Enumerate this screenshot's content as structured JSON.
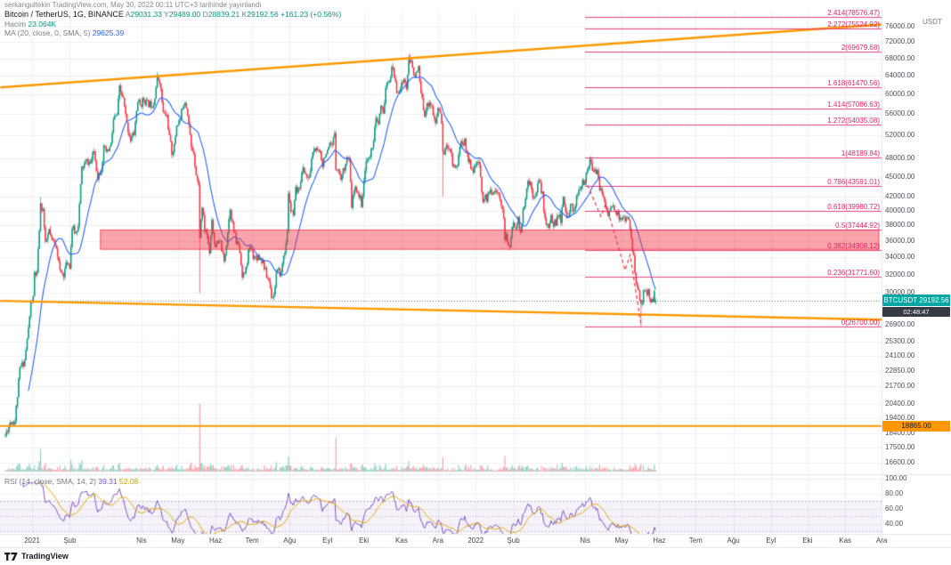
{
  "attribution": "serkangultekin TradingView.com, May 30, 2022 00:11 UTC+3 tarihinde yayınlandı",
  "legend": {
    "title": "Bitcoin / TetherUS, 1G, BINANCE",
    "ohlc": [
      {
        "k": "A",
        "v": "29031.33"
      },
      {
        "k": "Y",
        "v": "29489.00"
      },
      {
        "k": "D",
        "v": "28839.21"
      },
      {
        "k": "K",
        "v": "29192.56"
      }
    ],
    "change": "+161.23 (+0.56%)",
    "volume_label": "Hacim",
    "volume_value": "23.064K",
    "ma_label": "MA (20, close, 0, SMA, 5)",
    "ma_value": "29625.39"
  },
  "rsi_legend": {
    "label": "RSI (14, close, SMA, 14, 2)",
    "value": "39.31",
    "value2": "52.08"
  },
  "price_tag": {
    "symbol": "BTCUSDT",
    "price": "29192.56",
    "countdown": "02:48:47"
  },
  "hline_label": "18865.00",
  "scale_currency": "USDT",
  "logo_text": "TradingView",
  "colors": {
    "up": "#089981",
    "down": "#f23645",
    "ma": "#2962ff",
    "trendline": "#ff9800",
    "fib": "#e91e63",
    "zone_fill": "rgba(242,54,69,0.45)",
    "zone_border": "rgba(242,54,69,0.75)",
    "rsi": "#7e57c2",
    "rsi_ma": "#e7a600",
    "rsi_band": "rgba(126,87,194,0.08)",
    "rsi_band_line": "rgba(126,87,194,0.45)",
    "tag_bg": "#00a6a2",
    "countdown_bg": "#363a45",
    "hline": "#ff9800",
    "grid": "rgba(42,46,57,0.07)",
    "sep": "#e3e6ee",
    "close_line": "rgba(19,23,34,0.6)"
  },
  "chart_data": {
    "type": "candlestick",
    "title": "Bitcoin / TetherUS, 1G, BINANCE",
    "symbol": "BTCUSDT",
    "interval": "1G",
    "scale": "log",
    "last": {
      "open": 29031.33,
      "high": 29489.0,
      "low": 28839.21,
      "close": 29192.56,
      "change": "+161.23 (+0.56%)",
      "volume": "23.064K"
    },
    "ma20_last": 29625.39,
    "rsi_last": 39.31,
    "rsi_ma_last": 52.08,
    "y_axis": {
      "currency": "USDT",
      "labels": [
        76000,
        72000,
        68000,
        64000,
        60000,
        56000,
        52000,
        48000,
        45000,
        42000,
        40000,
        38000,
        36000,
        34000,
        32000,
        30000,
        26900,
        25300,
        24100,
        22850,
        21700,
        20400,
        19400,
        18400,
        17500,
        16600
      ]
    },
    "rsi_axis_labels": [
      100,
      80,
      60,
      40
    ],
    "x_axis": [
      {
        "t": "2021",
        "d": 0
      },
      {
        "t": "Şub",
        "d": 31
      },
      {
        "t": "Nis",
        "d": 90
      },
      {
        "t": "May",
        "d": 120
      },
      {
        "t": "Haz",
        "d": 151
      },
      {
        "t": "Tem",
        "d": 181
      },
      {
        "t": "Ağu",
        "d": 212
      },
      {
        "t": "Eyl",
        "d": 243
      },
      {
        "t": "Eki",
        "d": 273
      },
      {
        "t": "Kas",
        "d": 304
      },
      {
        "t": "Ara",
        "d": 334
      },
      {
        "t": "2022",
        "d": 365
      },
      {
        "t": "Şub",
        "d": 396
      },
      {
        "t": "Nis",
        "d": 455
      },
      {
        "t": "May",
        "d": 485
      },
      {
        "t": "Haz",
        "d": 516
      },
      {
        "t": "Tem",
        "d": 546
      },
      {
        "t": "Ağu",
        "d": 577
      },
      {
        "t": "Eyl",
        "d": 608
      },
      {
        "t": "Eki",
        "d": 638
      },
      {
        "t": "Kas",
        "d": 669
      },
      {
        "t": "Ara",
        "d": 699
      }
    ],
    "anchors": [
      [
        -22,
        18250
      ],
      [
        -18,
        19150
      ],
      [
        -14,
        19200
      ],
      [
        -10,
        23000
      ],
      [
        -6,
        23750
      ],
      [
        -3,
        26450
      ],
      [
        -1,
        28950
      ],
      [
        1,
        29400
      ],
      [
        2,
        32150
      ],
      [
        4,
        31950
      ],
      [
        7,
        40600
      ],
      [
        9,
        40150
      ],
      [
        11,
        35450
      ],
      [
        14,
        37300
      ],
      [
        16,
        36000
      ],
      [
        18,
        35850
      ],
      [
        20,
        35500
      ],
      [
        23,
        32250
      ],
      [
        26,
        32100
      ],
      [
        29,
        33450
      ],
      [
        31,
        33100
      ],
      [
        33,
        37700
      ],
      [
        36,
        36950
      ],
      [
        38,
        38300
      ],
      [
        41,
        46350
      ],
      [
        45,
        47500
      ],
      [
        48,
        47150
      ],
      [
        51,
        49200
      ],
      [
        54,
        45100
      ],
      [
        57,
        46300
      ],
      [
        59,
        49600
      ],
      [
        62,
        48900
      ],
      [
        65,
        50350
      ],
      [
        67,
        54900
      ],
      [
        70,
        55850
      ],
      [
        72,
        61200
      ],
      [
        75,
        59000
      ],
      [
        78,
        54100
      ],
      [
        81,
        51300
      ],
      [
        84,
        52400
      ],
      [
        87,
        58800
      ],
      [
        89,
        57750
      ],
      [
        92,
        59000
      ],
      [
        95,
        58100
      ],
      [
        98,
        58000
      ],
      [
        100,
        58200
      ],
      [
        103,
        63500
      ],
      [
        105,
        63100
      ],
      [
        108,
        56200
      ],
      [
        111,
        55650
      ],
      [
        113,
        51700
      ],
      [
        115,
        49000
      ],
      [
        117,
        50000
      ],
      [
        119,
        54000
      ],
      [
        122,
        55000
      ],
      [
        124,
        57750
      ],
      [
        126,
        58800
      ],
      [
        128,
        56400
      ],
      [
        131,
        49700
      ],
      [
        133,
        49100
      ],
      [
        135,
        45600
      ],
      [
        137,
        43550
      ],
      [
        138,
        36700
      ],
      [
        140,
        40600
      ],
      [
        142,
        37300
      ],
      [
        143,
        37500
      ],
      [
        146,
        34700
      ],
      [
        148,
        38900
      ],
      [
        150,
        35700
      ],
      [
        152,
        35500
      ],
      [
        155,
        35800
      ],
      [
        158,
        33400
      ],
      [
        160,
        35800
      ],
      [
        163,
        40500
      ],
      [
        165,
        38100
      ],
      [
        168,
        35800
      ],
      [
        170,
        35600
      ],
      [
        172,
        33500
      ],
      [
        173,
        31600
      ],
      [
        176,
        32550
      ],
      [
        178,
        34650
      ],
      [
        180,
        35050
      ],
      [
        183,
        33900
      ],
      [
        186,
        34200
      ],
      [
        188,
        33850
      ],
      [
        190,
        33500
      ],
      [
        193,
        31800
      ],
      [
        195,
        31400
      ],
      [
        197,
        29800
      ],
      [
        199,
        29800
      ],
      [
        201,
        32150
      ],
      [
        203,
        32300
      ],
      [
        205,
        32100
      ],
      [
        207,
        34300
      ],
      [
        209,
        35400
      ],
      [
        210,
        37300
      ],
      [
        211,
        42200
      ],
      [
        212,
        41500
      ],
      [
        213,
        39900
      ],
      [
        215,
        39150
      ],
      [
        217,
        42850
      ],
      [
        219,
        42800
      ],
      [
        221,
        44600
      ],
      [
        223,
        46250
      ],
      [
        225,
        45600
      ],
      [
        227,
        44400
      ],
      [
        229,
        46000
      ],
      [
        231,
        49300
      ],
      [
        233,
        49500
      ],
      [
        235,
        48900
      ],
      [
        237,
        49250
      ],
      [
        239,
        47100
      ],
      [
        241,
        48800
      ],
      [
        243,
        48800
      ],
      [
        245,
        50000
      ],
      [
        247,
        49900
      ],
      [
        249,
        52650
      ],
      [
        250,
        46800
      ],
      [
        252,
        46050
      ],
      [
        254,
        44950
      ],
      [
        255,
        45200
      ],
      [
        257,
        46700
      ],
      [
        259,
        48150
      ],
      [
        261,
        47250
      ],
      [
        263,
        40700
      ],
      [
        265,
        42800
      ],
      [
        267,
        43200
      ],
      [
        269,
        42200
      ],
      [
        271,
        41050
      ],
      [
        273,
        43800
      ],
      [
        275,
        48150
      ],
      [
        277,
        47650
      ],
      [
        279,
        49250
      ],
      [
        281,
        51500
      ],
      [
        283,
        54700
      ],
      [
        285,
        54000
      ],
      [
        287,
        57400
      ],
      [
        289,
        56000
      ],
      [
        291,
        61700
      ],
      [
        293,
        62000
      ],
      [
        295,
        64300
      ],
      [
        297,
        66000
      ],
      [
        299,
        62200
      ],
      [
        300,
        60700
      ],
      [
        302,
        61300
      ],
      [
        304,
        61850
      ],
      [
        306,
        63300
      ],
      [
        308,
        61400
      ],
      [
        310,
        67550
      ],
      [
        312,
        66950
      ],
      [
        314,
        64900
      ],
      [
        316,
        64150
      ],
      [
        318,
        65500
      ],
      [
        320,
        60100
      ],
      [
        321,
        58600
      ],
      [
        323,
        56300
      ],
      [
        325,
        57550
      ],
      [
        327,
        58750
      ],
      [
        329,
        57200
      ],
      [
        331,
        54750
      ],
      [
        332,
        54000
      ],
      [
        334,
        57300
      ],
      [
        336,
        56500
      ],
      [
        337,
        53600
      ],
      [
        338,
        49200
      ],
      [
        340,
        49400
      ],
      [
        342,
        50100
      ],
      [
        344,
        50050
      ],
      [
        346,
        47150
      ],
      [
        348,
        46700
      ],
      [
        350,
        46900
      ],
      [
        351,
        48900
      ],
      [
        353,
        50800
      ],
      [
        355,
        50700
      ],
      [
        356,
        50800
      ],
      [
        358,
        48600
      ],
      [
        360,
        47300
      ],
      [
        362,
        46500
      ],
      [
        364,
        46200
      ],
      [
        366,
        47350
      ],
      [
        368,
        46450
      ],
      [
        370,
        43100
      ],
      [
        371,
        41600
      ],
      [
        373,
        41750
      ],
      [
        375,
        41950
      ],
      [
        377,
        43100
      ],
      [
        379,
        42750
      ],
      [
        381,
        43100
      ],
      [
        383,
        42250
      ],
      [
        385,
        41750
      ],
      [
        387,
        40700
      ],
      [
        389,
        36450
      ],
      [
        390,
        36500
      ],
      [
        392,
        35050
      ],
      [
        394,
        36250
      ],
      [
        396,
        38500
      ],
      [
        398,
        37900
      ],
      [
        400,
        38700
      ],
      [
        402,
        37000
      ],
      [
        404,
        39650
      ],
      [
        406,
        41500
      ],
      [
        408,
        44400
      ],
      [
        410,
        43900
      ],
      [
        412,
        42400
      ],
      [
        414,
        42400
      ],
      [
        416,
        44050
      ],
      [
        418,
        43900
      ],
      [
        420,
        42200
      ],
      [
        421,
        40100
      ],
      [
        423,
        38450
      ],
      [
        425,
        37300
      ],
      [
        427,
        39200
      ],
      [
        429,
        38350
      ],
      [
        431,
        38300
      ],
      [
        433,
        39250
      ],
      [
        435,
        38750
      ],
      [
        437,
        41900
      ],
      [
        439,
        39450
      ],
      [
        441,
        39300
      ],
      [
        443,
        41150
      ],
      [
        445,
        39700
      ],
      [
        447,
        41100
      ],
      [
        449,
        42200
      ],
      [
        451,
        42900
      ],
      [
        453,
        43950
      ],
      [
        455,
        44300
      ],
      [
        457,
        46850
      ],
      [
        459,
        47400
      ],
      [
        461,
        46250
      ],
      [
        463,
        46300
      ],
      [
        465,
        45550
      ],
      [
        467,
        43200
      ],
      [
        469,
        42250
      ],
      [
        470,
        42300
      ],
      [
        472,
        40550
      ],
      [
        474,
        39500
      ],
      [
        476,
        40450
      ],
      [
        478,
        40400
      ],
      [
        480,
        39700
      ],
      [
        482,
        39450
      ],
      [
        484,
        38600
      ],
      [
        486,
        39250
      ],
      [
        488,
        38550
      ],
      [
        490,
        38600
      ],
      [
        491,
        38500
      ],
      [
        493,
        36050
      ],
      [
        495,
        34000
      ],
      [
        497,
        31050
      ],
      [
        499,
        30100
      ],
      [
        501,
        29050
      ],
      [
        502,
        29300
      ],
      [
        503,
        30100
      ],
      [
        505,
        29850
      ],
      [
        507,
        30450
      ],
      [
        508,
        29400
      ],
      [
        509,
        29200
      ],
      [
        510,
        29450
      ],
      [
        511,
        29100
      ],
      [
        512,
        30300
      ],
      [
        513,
        29192.56
      ]
    ],
    "wick_highs": [
      [
        7,
        41950
      ],
      [
        103,
        64850
      ],
      [
        297,
        66950
      ],
      [
        310,
        69000
      ]
    ],
    "wick_lows": [
      [
        138,
        30000
      ],
      [
        199,
        29300
      ],
      [
        338,
        42000
      ],
      [
        501,
        26700
      ]
    ],
    "volume_spikes": [
      [
        -14,
        1.5
      ],
      [
        -10,
        1.4
      ],
      [
        7,
        2.0
      ],
      [
        11,
        1.8
      ],
      [
        41,
        1.6
      ],
      [
        54,
        1.9
      ],
      [
        131,
        1.7
      ],
      [
        138,
        2.8
      ],
      [
        140,
        1.9
      ],
      [
        173,
        1.5
      ],
      [
        250,
        1.8
      ],
      [
        263,
        1.4
      ],
      [
        338,
        1.7
      ],
      [
        389,
        1.5
      ],
      [
        497,
        2.2
      ],
      [
        501,
        3.2
      ],
      [
        503,
        2.0
      ]
    ],
    "fib_levels": [
      {
        "r": "2.414",
        "p": 78576.47
      },
      {
        "r": "2.272",
        "p": 75524.92
      },
      {
        "r": "2",
        "p": 69679.68
      },
      {
        "r": "1.618",
        "p": 61470.56
      },
      {
        "r": "1.414",
        "p": 57086.63
      },
      {
        "r": "1.272",
        "p": 54035.08
      },
      {
        "r": "1",
        "p": 48189.84
      },
      {
        "r": "0.786",
        "p": 43591.01
      },
      {
        "r": "0.618",
        "p": 39980.72
      },
      {
        "r": "0.5",
        "p": 37444.92
      },
      {
        "r": "0.382",
        "p": 34909.12
      },
      {
        "r": "0.236",
        "p": 31771.6
      },
      {
        "r": "0",
        "p": 26700.0
      }
    ],
    "fib_extent": {
      "d1": 455,
      "d2": 699
    },
    "zone": {
      "p1": 37444.92,
      "p2": 34909.12,
      "d1": 56,
      "d2": 697
    },
    "trendlines": [
      {
        "name": "upper-resistance",
        "d1": -26,
        "p1": 61500,
        "d2": 699,
        "p2": 76600
      },
      {
        "name": "lower-support",
        "d1": -26,
        "p1": 29200,
        "d2": 699,
        "p2": 27350
      }
    ],
    "hline": 18865.0,
    "close_line": 29192.56,
    "projection": [
      [
        455,
        44600
      ],
      [
        468,
        39200
      ],
      [
        472,
        41000
      ],
      [
        488,
        32500
      ],
      [
        492,
        34300
      ],
      [
        501,
        26900
      ]
    ]
  }
}
